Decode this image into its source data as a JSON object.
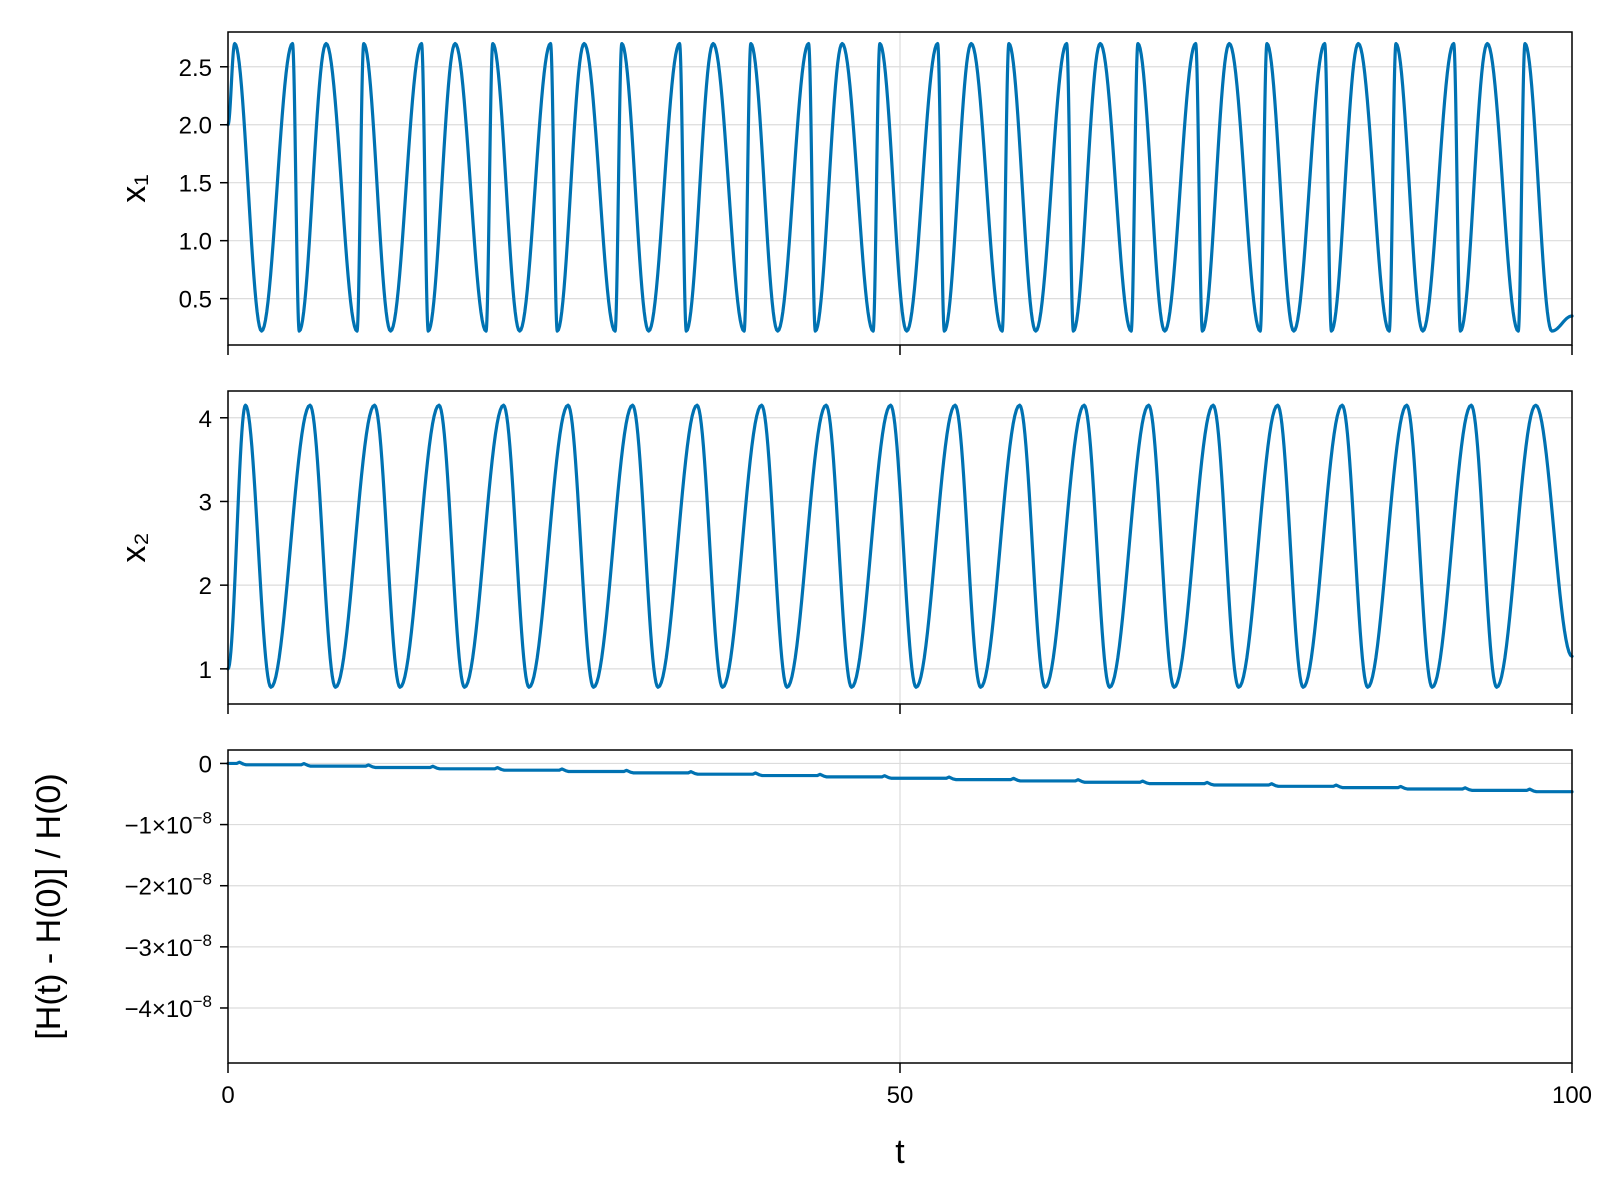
{
  "chart_data": [
    {
      "type": "line",
      "title": "",
      "xlabel": "",
      "ylabel": "x₁",
      "xlim": [
        0,
        100
      ],
      "ylim": [
        0.1,
        2.8
      ],
      "xticks": [
        0,
        50,
        100
      ],
      "xtick_labels_shown": false,
      "yticks": [
        0.5,
        1.0,
        1.5,
        2.0,
        2.5
      ],
      "ytick_labels": [
        "0.5",
        "1.0",
        "1.5",
        "2.0",
        "2.5"
      ],
      "grid": true,
      "color": "#0072b2",
      "series": [
        {
          "x": [
            0,
            0.5,
            2.5,
            4.8,
            5.3,
            7.3,
            9.6,
            10.1,
            12.1,
            14.4,
            14.9,
            16.9,
            19.2,
            19.7,
            21.7,
            24.0,
            24.5,
            26.5,
            28.8,
            29.3,
            31.3,
            33.6,
            34.1,
            36.1,
            38.4,
            38.9,
            40.9,
            43.2,
            43.7,
            45.7,
            48.0,
            48.5,
            50.5,
            52.8,
            53.3,
            55.3,
            57.6,
            58.1,
            60.1,
            62.4,
            62.9,
            64.9,
            67.2,
            67.7,
            69.7,
            72.0,
            72.5,
            74.5,
            76.8,
            77.3,
            79.3,
            81.6,
            82.1,
            84.1,
            86.4,
            86.9,
            88.9,
            91.2,
            91.7,
            93.7,
            96.0,
            96.5,
            98.5,
            100
          ],
          "y": [
            2.0,
            2.7,
            0.22,
            2.7,
            0.22,
            2.7,
            0.22,
            2.7,
            0.22,
            2.7,
            0.22,
            2.7,
            0.22,
            2.7,
            0.22,
            2.7,
            0.22,
            2.7,
            0.22,
            2.7,
            0.22,
            2.7,
            0.22,
            2.7,
            0.22,
            2.7,
            0.22,
            2.7,
            0.22,
            2.7,
            0.22,
            2.7,
            0.22,
            2.7,
            0.22,
            2.7,
            0.22,
            2.7,
            0.22,
            2.7,
            0.22,
            2.7,
            0.22,
            2.7,
            0.22,
            2.7,
            0.22,
            2.7,
            0.22,
            2.7,
            0.22,
            2.7,
            0.22,
            2.7,
            0.22,
            2.7,
            0.22,
            2.7,
            0.22,
            2.7,
            0.22,
            2.7,
            0.22,
            0.35
          ]
        }
      ]
    },
    {
      "type": "line",
      "title": "",
      "xlabel": "",
      "ylabel": "x₂",
      "xlim": [
        0,
        100
      ],
      "ylim": [
        0.58,
        4.32
      ],
      "xticks": [
        0,
        50,
        100
      ],
      "xtick_labels_shown": false,
      "yticks": [
        1,
        2,
        3,
        4
      ],
      "ytick_labels": [
        "1",
        "2",
        "3",
        "4"
      ],
      "grid": true,
      "color": "#0072b2",
      "series": [
        {
          "x": [
            0,
            1.3,
            3.2,
            6.1,
            8.0,
            10.9,
            12.8,
            15.7,
            17.6,
            20.5,
            22.4,
            25.3,
            27.2,
            30.1,
            32.0,
            34.9,
            36.8,
            39.7,
            41.6,
            44.5,
            46.4,
            49.3,
            51.2,
            54.1,
            56.0,
            58.9,
            60.8,
            63.7,
            65.6,
            68.5,
            70.4,
            73.3,
            75.2,
            78.1,
            80.0,
            82.9,
            84.8,
            87.7,
            89.6,
            92.5,
            94.4,
            97.3,
            100
          ],
          "y": [
            1.0,
            4.15,
            0.78,
            4.15,
            0.78,
            4.15,
            0.78,
            4.15,
            0.78,
            4.15,
            0.78,
            4.15,
            0.78,
            4.15,
            0.78,
            4.15,
            0.78,
            4.15,
            0.78,
            4.15,
            0.78,
            4.15,
            0.78,
            4.15,
            0.78,
            4.15,
            0.78,
            4.15,
            0.78,
            4.15,
            0.78,
            4.15,
            0.78,
            4.15,
            0.78,
            4.15,
            0.78,
            4.15,
            0.78,
            4.15,
            0.78,
            4.15,
            1.15
          ]
        }
      ]
    },
    {
      "type": "line",
      "title": "",
      "xlabel": "t",
      "ylabel": "[H(t) - H(0)] / H(0)",
      "xlim": [
        0,
        100
      ],
      "ylim": [
        -4.9e-08,
        2.2e-09
      ],
      "xticks": [
        0,
        50,
        100
      ],
      "xtick_labels": [
        "0",
        "50",
        "100"
      ],
      "yticks": [
        0,
        -1e-08,
        -2e-08,
        -3e-08,
        -4e-08
      ],
      "ytick_labels": [
        {
          "mantissa": "0",
          "exponent": ""
        },
        {
          "mantissa": "−1×10",
          "exponent": "−8"
        },
        {
          "mantissa": "−2×10",
          "exponent": "−8"
        },
        {
          "mantissa": "−3×10",
          "exponent": "−8"
        },
        {
          "mantissa": "−4×10",
          "exponent": "−8"
        }
      ],
      "grid": true,
      "color": "#0072b2",
      "series": [
        {
          "step_times": [
            1.0,
            5.8,
            10.6,
            15.4,
            20.2,
            25.0,
            29.8,
            34.6,
            39.4,
            44.2,
            49.0,
            53.8,
            58.6,
            63.4,
            68.2,
            73.0,
            77.8,
            82.6,
            87.4,
            92.2,
            97.0
          ],
          "step_size": -2.2e-10,
          "start_value": 0,
          "end_time": 100
        }
      ]
    }
  ]
}
